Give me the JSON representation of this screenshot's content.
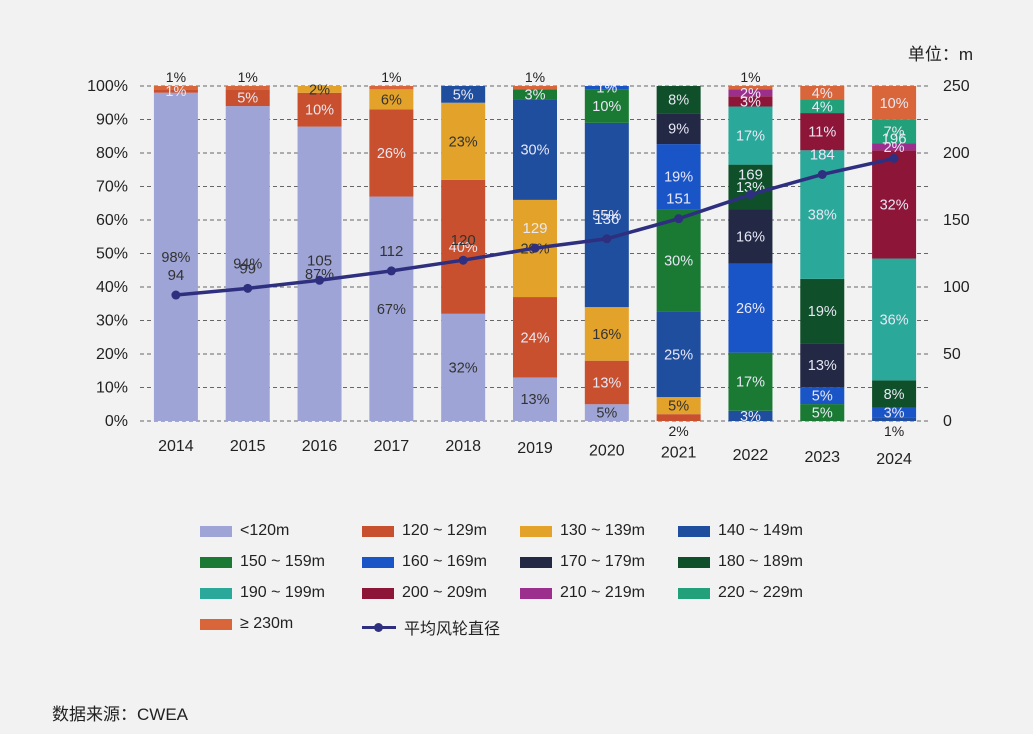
{
  "unit_label": "单位：m",
  "source": "数据来源：CWEA",
  "chart_data": {
    "type": "bar",
    "stacked": true,
    "categories": [
      "2014",
      "2015",
      "2016",
      "2017",
      "2018",
      "2019",
      "2020",
      "2021",
      "2022",
      "2023",
      "2024"
    ],
    "y_left": {
      "ticks": [
        "0%",
        "10%",
        "20%",
        "30%",
        "40%",
        "50%",
        "60%",
        "70%",
        "80%",
        "90%",
        "100%"
      ],
      "range": [
        0,
        100
      ]
    },
    "y_right": {
      "ticks": [
        "0",
        "50",
        "100",
        "150",
        "200",
        "250"
      ],
      "range": [
        0,
        250
      ]
    },
    "grid": "dashed-horizontal",
    "legend_position": "bottom",
    "series": [
      {
        "name": "<120m",
        "color": "#9ea4d6",
        "values": [
          98,
          94,
          87,
          67,
          32,
          13,
          5,
          0,
          0,
          0,
          0
        ]
      },
      {
        "name": "120 ~ 129m",
        "color": "#c8502e",
        "values": [
          1,
          5,
          10,
          26,
          40,
          24,
          13,
          2,
          0,
          0,
          0
        ]
      },
      {
        "name": "130 ~ 139m",
        "color": "#e3a22a",
        "values": [
          0,
          0,
          2,
          6,
          23,
          29,
          16,
          5,
          0,
          0,
          0
        ]
      },
      {
        "name": "140 ~ 149m",
        "color": "#1f4e9e",
        "values": [
          0,
          0,
          0,
          0,
          5,
          30,
          55,
          25,
          3,
          0,
          1
        ]
      },
      {
        "name": "150 ~ 159m",
        "color": "#1a7a33",
        "values": [
          0,
          0,
          0,
          0,
          0,
          3,
          10,
          30,
          17,
          5,
          0
        ]
      },
      {
        "name": "160 ~ 169m",
        "color": "#1a55c8",
        "values": [
          0,
          0,
          0,
          0,
          0,
          0,
          1,
          19,
          26,
          5,
          3
        ]
      },
      {
        "name": "170 ~ 179m",
        "color": "#232845",
        "values": [
          0,
          0,
          0,
          0,
          0,
          0,
          0,
          9,
          16,
          13,
          0
        ]
      },
      {
        "name": "180 ~ 189m",
        "color": "#0f4f29",
        "values": [
          0,
          0,
          0,
          0,
          0,
          0,
          0,
          8,
          13,
          19,
          8
        ]
      },
      {
        "name": "190 ~ 199m",
        "color": "#2aa89a",
        "values": [
          0,
          0,
          0,
          0,
          0,
          0,
          0,
          0,
          17,
          38,
          36
        ]
      },
      {
        "name": "200 ~ 209m",
        "color": "#8c1538",
        "values": [
          0,
          0,
          0,
          0,
          0,
          0,
          0,
          0,
          3,
          11,
          32
        ]
      },
      {
        "name": "210 ~ 219m",
        "color": "#9c2f8e",
        "values": [
          0,
          0,
          0,
          0,
          0,
          0,
          0,
          0,
          2,
          0,
          2
        ]
      },
      {
        "name": "220 ~ 229m",
        "color": "#22a07a",
        "values": [
          0,
          0,
          0,
          0,
          0,
          0,
          0,
          0,
          0,
          4,
          7
        ]
      },
      {
        "name": "≥ 230m",
        "color": "#d9663a",
        "values": [
          1,
          1,
          0,
          1,
          0,
          1,
          0,
          0,
          1,
          4,
          10
        ]
      }
    ],
    "line": {
      "name": "平均风轮直径",
      "color": "#2f2f80",
      "values": [
        94,
        99,
        105,
        112,
        120,
        129,
        136,
        151,
        169,
        184,
        196
      ],
      "axis": "right"
    },
    "bar_labels": [
      [
        {
          "s": 0,
          "t": "98%"
        },
        {
          "s": 1,
          "t": "1%"
        }
      ],
      [
        {
          "s": 0,
          "t": "94%"
        },
        {
          "s": 1,
          "t": "5%"
        }
      ],
      [
        {
          "s": 0,
          "t": "87%"
        },
        {
          "s": 1,
          "t": "10%"
        },
        {
          "s": 2,
          "t": "2%"
        }
      ],
      [
        {
          "s": 0,
          "t": "67%"
        },
        {
          "s": 1,
          "t": "26%"
        },
        {
          "s": 2,
          "t": "6%"
        }
      ],
      [
        {
          "s": 0,
          "t": "32%"
        },
        {
          "s": 1,
          "t": "40%"
        },
        {
          "s": 2,
          "t": "23%"
        },
        {
          "s": 3,
          "t": "5%"
        }
      ],
      [
        {
          "s": 0,
          "t": "13%"
        },
        {
          "s": 1,
          "t": "24%"
        },
        {
          "s": 2,
          "t": "29%"
        },
        {
          "s": 3,
          "t": "30%"
        },
        {
          "s": 4,
          "t": "3%"
        }
      ],
      [
        {
          "s": 0,
          "t": "5%"
        },
        {
          "s": 1,
          "t": "13%"
        },
        {
          "s": 2,
          "t": "16%"
        },
        {
          "s": 3,
          "t": "55%"
        },
        {
          "s": 4,
          "t": "10%"
        },
        {
          "s": 5,
          "t": "1%"
        }
      ],
      [
        {
          "s": 2,
          "t": "5%"
        },
        {
          "s": 3,
          "t": "25%"
        },
        {
          "s": 4,
          "t": "30%"
        },
        {
          "s": 5,
          "t": "19%"
        },
        {
          "s": 6,
          "t": "9%"
        },
        {
          "s": 7,
          "t": "8%"
        }
      ],
      [
        {
          "s": 3,
          "t": "3%"
        },
        {
          "s": 4,
          "t": "17%"
        },
        {
          "s": 5,
          "t": "26%"
        },
        {
          "s": 6,
          "t": "16%"
        },
        {
          "s": 7,
          "t": "13%"
        },
        {
          "s": 8,
          "t": "17%"
        },
        {
          "s": 9,
          "t": "3%"
        },
        {
          "s": 10,
          "t": "2%"
        }
      ],
      [
        {
          "s": 4,
          "t": "5%"
        },
        {
          "s": 5,
          "t": "5%"
        },
        {
          "s": 6,
          "t": "13%"
        },
        {
          "s": 7,
          "t": "19%"
        },
        {
          "s": 8,
          "t": "38%"
        },
        {
          "s": 9,
          "t": "11%"
        },
        {
          "s": 11,
          "t": "4%"
        },
        {
          "s": 12,
          "t": "4%"
        }
      ],
      [
        {
          "s": 5,
          "t": "3%"
        },
        {
          "s": 7,
          "t": "8%"
        },
        {
          "s": 8,
          "t": "36%"
        },
        {
          "s": 9,
          "t": "32%"
        },
        {
          "s": 10,
          "t": "2%"
        },
        {
          "s": 11,
          "t": "7%"
        },
        {
          "s": 12,
          "t": "10%"
        }
      ]
    ],
    "top_labels": [
      {
        "c": 0,
        "t": "1%"
      },
      {
        "c": 1,
        "t": "1%"
      },
      {
        "c": 3,
        "t": "1%"
      },
      {
        "c": 5,
        "t": "1%"
      },
      {
        "c": 8,
        "t": "1%"
      }
    ],
    "bottom_labels": [
      {
        "c": 7,
        "t": "2%"
      },
      {
        "c": 10,
        "t": "1%"
      }
    ]
  }
}
